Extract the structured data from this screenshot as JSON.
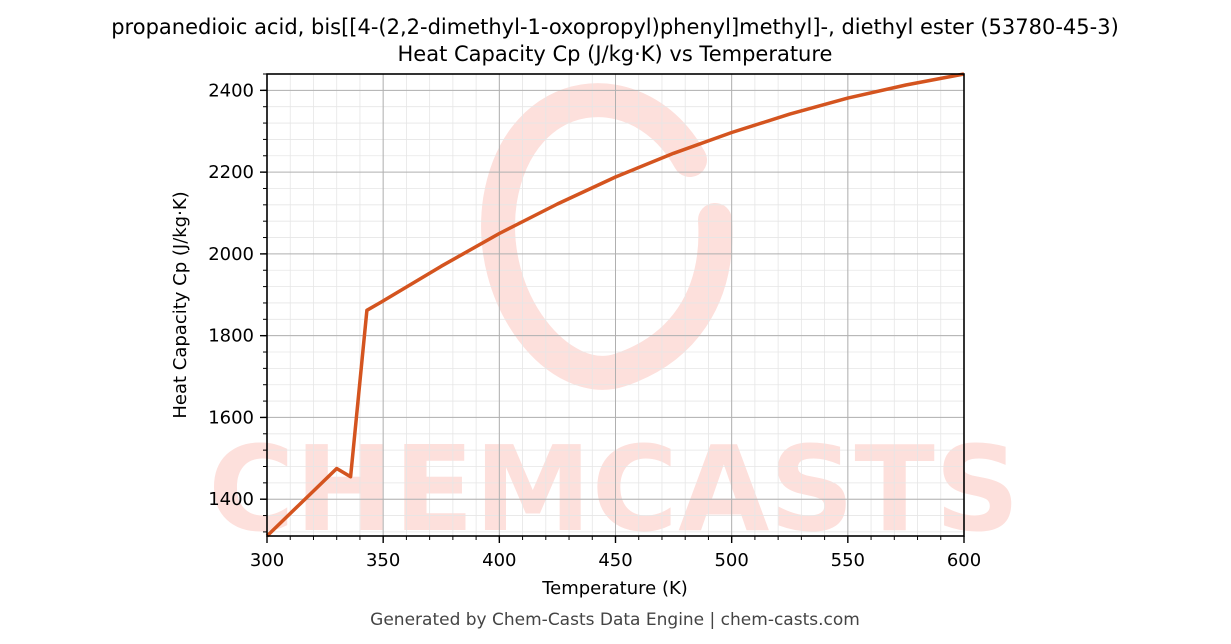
{
  "chart_data": {
    "type": "line",
    "title": "propanedioic acid, bis[[4-(2,2-dimethyl-1-oxopropyl)phenyl]methyl]-, diethyl ester (53780-45-3)",
    "subtitle": "Heat Capacity Cp (J/kg·K) vs Temperature",
    "xlabel": "Temperature (K)",
    "ylabel": "Heat Capacity Cp (J/kg·K)",
    "xlim": [
      300,
      600
    ],
    "ylim": [
      1310,
      2440
    ],
    "xticks": [
      300,
      350,
      400,
      450,
      500,
      550,
      600
    ],
    "yticks": [
      1400,
      1600,
      1800,
      2000,
      2200,
      2400
    ],
    "grid": true,
    "series": [
      {
        "color": "#d4541f",
        "x": [
          300,
          310,
          320,
          330,
          336,
          343,
          350,
          375,
          400,
          425,
          450,
          475,
          500,
          525,
          550,
          575,
          600
        ],
        "y": [
          1310,
          1365,
          1420,
          1475,
          1455,
          1862,
          1885,
          1970,
          2050,
          2122,
          2188,
          2246,
          2297,
          2342,
          2381,
          2413,
          2440
        ]
      }
    ]
  },
  "watermark": {
    "text": "CHEMCASTS",
    "color": "#fde0dc"
  },
  "footer": "Generated by Chem-Casts Data Engine | chem-casts.com"
}
